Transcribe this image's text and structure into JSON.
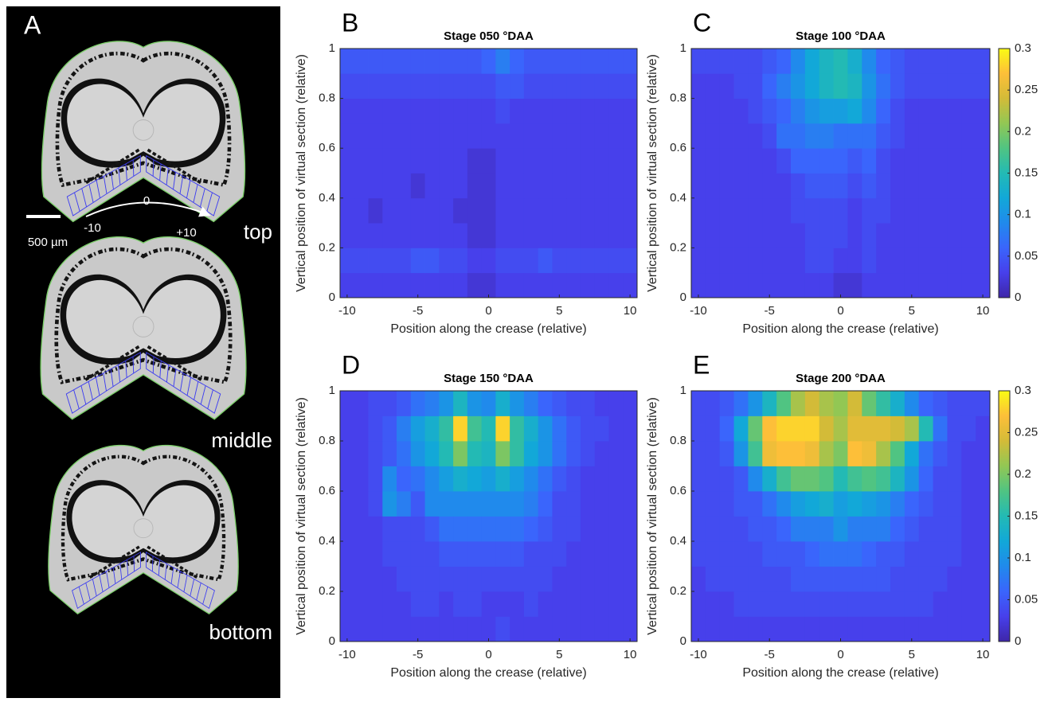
{
  "image_panel": {
    "label": "A",
    "scale_bar": "500 µm",
    "arrow_labels": [
      "-10",
      "0",
      "+10"
    ],
    "section_labels": [
      "top",
      "middle",
      "bottom"
    ]
  },
  "chart_data": [
    {
      "type": "heatmap",
      "label": "B",
      "title": "Stage 050 °DAA",
      "x_label": "Position along the crease (relative)",
      "y_label": "Vertical position of virtual section (relative)",
      "x": [
        -10,
        -9,
        -8,
        -7,
        -6,
        -5,
        -4,
        -3,
        -2,
        -1,
        0,
        1,
        2,
        3,
        4,
        5,
        6,
        7,
        8,
        9,
        10
      ],
      "y": [
        0.05,
        0.15,
        0.25,
        0.35,
        0.45,
        0.55,
        0.65,
        0.75,
        0.85,
        0.95
      ],
      "values": [
        [
          0.03,
          0.03,
          0.03,
          0.03,
          0.03,
          0.03,
          0.03,
          0.03,
          0.03,
          0.02,
          0.02,
          0.03,
          0.03,
          0.03,
          0.03,
          0.03,
          0.03,
          0.03,
          0.03,
          0.03,
          0.03
        ],
        [
          0.04,
          0.04,
          0.04,
          0.04,
          0.04,
          0.05,
          0.05,
          0.04,
          0.04,
          0.03,
          0.03,
          0.04,
          0.04,
          0.04,
          0.05,
          0.04,
          0.04,
          0.04,
          0.04,
          0.04,
          0.04
        ],
        [
          0.03,
          0.03,
          0.03,
          0.03,
          0.03,
          0.03,
          0.03,
          0.03,
          0.03,
          0.02,
          0.02,
          0.03,
          0.03,
          0.03,
          0.03,
          0.03,
          0.03,
          0.03,
          0.03,
          0.03,
          0.03
        ],
        [
          0.03,
          0.03,
          0.02,
          0.03,
          0.03,
          0.03,
          0.03,
          0.03,
          0.02,
          0.02,
          0.02,
          0.03,
          0.03,
          0.03,
          0.03,
          0.03,
          0.03,
          0.03,
          0.03,
          0.03,
          0.03
        ],
        [
          0.03,
          0.03,
          0.03,
          0.03,
          0.03,
          0.02,
          0.03,
          0.03,
          0.03,
          0.02,
          0.02,
          0.03,
          0.03,
          0.03,
          0.03,
          0.03,
          0.03,
          0.03,
          0.03,
          0.03,
          0.03
        ],
        [
          0.03,
          0.03,
          0.03,
          0.03,
          0.03,
          0.03,
          0.03,
          0.03,
          0.03,
          0.02,
          0.02,
          0.03,
          0.03,
          0.03,
          0.03,
          0.03,
          0.03,
          0.03,
          0.03,
          0.03,
          0.03
        ],
        [
          0.03,
          0.03,
          0.03,
          0.03,
          0.03,
          0.03,
          0.03,
          0.03,
          0.03,
          0.03,
          0.03,
          0.03,
          0.03,
          0.03,
          0.03,
          0.03,
          0.03,
          0.03,
          0.03,
          0.03,
          0.03
        ],
        [
          0.03,
          0.03,
          0.03,
          0.03,
          0.03,
          0.03,
          0.03,
          0.03,
          0.03,
          0.03,
          0.03,
          0.04,
          0.03,
          0.03,
          0.03,
          0.03,
          0.03,
          0.03,
          0.03,
          0.03,
          0.03
        ],
        [
          0.04,
          0.04,
          0.04,
          0.04,
          0.04,
          0.04,
          0.04,
          0.04,
          0.04,
          0.04,
          0.04,
          0.05,
          0.05,
          0.04,
          0.04,
          0.04,
          0.04,
          0.04,
          0.04,
          0.04,
          0.04
        ],
        [
          0.05,
          0.05,
          0.05,
          0.05,
          0.05,
          0.05,
          0.05,
          0.05,
          0.05,
          0.05,
          0.06,
          0.08,
          0.06,
          0.05,
          0.05,
          0.05,
          0.05,
          0.05,
          0.05,
          0.05,
          0.05
        ]
      ],
      "xlim": [
        -10.5,
        10.5
      ],
      "ylim": [
        0,
        1
      ],
      "xticks": [
        -10,
        -5,
        0,
        5,
        10
      ],
      "yticks": [
        0,
        0.2,
        0.4,
        0.6,
        0.8,
        1
      ],
      "clim": [
        0,
        0.3
      ],
      "colormap": "parula",
      "colorbar": false
    },
    {
      "type": "heatmap",
      "label": "C",
      "title": "Stage 100 °DAA",
      "x_label": "Position along the crease (relative)",
      "y_label": "Vertical position of virtual section (relative)",
      "x": [
        -10,
        -9,
        -8,
        -7,
        -6,
        -5,
        -4,
        -3,
        -2,
        -1,
        0,
        1,
        2,
        3,
        4,
        5,
        6,
        7,
        8,
        9,
        10
      ],
      "y": [
        0.05,
        0.15,
        0.25,
        0.35,
        0.45,
        0.55,
        0.65,
        0.75,
        0.85,
        0.95
      ],
      "values": [
        [
          0.03,
          0.03,
          0.03,
          0.03,
          0.03,
          0.03,
          0.03,
          0.03,
          0.03,
          0.03,
          0.02,
          0.02,
          0.03,
          0.03,
          0.03,
          0.03,
          0.03,
          0.03,
          0.03,
          0.03,
          0.03
        ],
        [
          0.03,
          0.03,
          0.03,
          0.03,
          0.03,
          0.03,
          0.03,
          0.03,
          0.04,
          0.04,
          0.03,
          0.03,
          0.04,
          0.03,
          0.03,
          0.03,
          0.03,
          0.03,
          0.03,
          0.03,
          0.03
        ],
        [
          0.03,
          0.03,
          0.03,
          0.03,
          0.03,
          0.03,
          0.03,
          0.03,
          0.04,
          0.04,
          0.04,
          0.03,
          0.04,
          0.03,
          0.03,
          0.03,
          0.03,
          0.03,
          0.03,
          0.03,
          0.03
        ],
        [
          0.03,
          0.03,
          0.03,
          0.03,
          0.03,
          0.03,
          0.03,
          0.04,
          0.04,
          0.04,
          0.04,
          0.03,
          0.04,
          0.04,
          0.03,
          0.03,
          0.03,
          0.03,
          0.03,
          0.03,
          0.03
        ],
        [
          0.03,
          0.03,
          0.03,
          0.03,
          0.03,
          0.03,
          0.03,
          0.04,
          0.05,
          0.05,
          0.05,
          0.04,
          0.05,
          0.04,
          0.03,
          0.03,
          0.03,
          0.03,
          0.03,
          0.03,
          0.03
        ],
        [
          0.03,
          0.03,
          0.03,
          0.03,
          0.03,
          0.03,
          0.04,
          0.06,
          0.06,
          0.06,
          0.06,
          0.05,
          0.06,
          0.04,
          0.03,
          0.03,
          0.03,
          0.03,
          0.03,
          0.03,
          0.03
        ],
        [
          0.03,
          0.03,
          0.03,
          0.03,
          0.03,
          0.04,
          0.07,
          0.07,
          0.08,
          0.08,
          0.07,
          0.07,
          0.07,
          0.05,
          0.04,
          0.03,
          0.03,
          0.03,
          0.03,
          0.03,
          0.03
        ],
        [
          0.03,
          0.03,
          0.03,
          0.03,
          0.04,
          0.05,
          0.06,
          0.08,
          0.1,
          0.11,
          0.11,
          0.12,
          0.09,
          0.06,
          0.04,
          0.03,
          0.03,
          0.03,
          0.03,
          0.03,
          0.03
        ],
        [
          0.03,
          0.03,
          0.03,
          0.04,
          0.04,
          0.06,
          0.08,
          0.1,
          0.12,
          0.14,
          0.15,
          0.14,
          0.1,
          0.07,
          0.05,
          0.04,
          0.04,
          0.04,
          0.04,
          0.04,
          0.04
        ],
        [
          0.04,
          0.04,
          0.04,
          0.04,
          0.04,
          0.05,
          0.06,
          0.09,
          0.12,
          0.14,
          0.15,
          0.13,
          0.09,
          0.06,
          0.05,
          0.04,
          0.04,
          0.04,
          0.04,
          0.04,
          0.04
        ]
      ],
      "xlim": [
        -10.5,
        10.5
      ],
      "ylim": [
        0,
        1
      ],
      "xticks": [
        -10,
        -5,
        0,
        5,
        10
      ],
      "yticks": [
        0,
        0.2,
        0.4,
        0.6,
        0.8,
        1
      ],
      "clim": [
        0,
        0.3
      ],
      "colormap": "parula",
      "colorbar": true,
      "colorbar_ticks": [
        0,
        0.05,
        0.1,
        0.15,
        0.2,
        0.25,
        0.3
      ]
    },
    {
      "type": "heatmap",
      "label": "D",
      "title": "Stage 150 °DAA",
      "x_label": "Position along the crease (relative)",
      "y_label": "Vertical position of virtual section (relative)",
      "x": [
        -10,
        -9,
        -8,
        -7,
        -6,
        -5,
        -4,
        -3,
        -2,
        -1,
        0,
        1,
        2,
        3,
        4,
        5,
        6,
        7,
        8,
        9,
        10
      ],
      "y": [
        0.05,
        0.15,
        0.25,
        0.35,
        0.45,
        0.55,
        0.65,
        0.75,
        0.85,
        0.95
      ],
      "values": [
        [
          0.03,
          0.03,
          0.03,
          0.03,
          0.03,
          0.03,
          0.03,
          0.03,
          0.03,
          0.03,
          0.03,
          0.04,
          0.03,
          0.03,
          0.03,
          0.03,
          0.03,
          0.03,
          0.03,
          0.03,
          0.03
        ],
        [
          0.03,
          0.03,
          0.03,
          0.03,
          0.03,
          0.04,
          0.04,
          0.03,
          0.04,
          0.04,
          0.03,
          0.03,
          0.03,
          0.04,
          0.03,
          0.03,
          0.03,
          0.03,
          0.03,
          0.03,
          0.03
        ],
        [
          0.03,
          0.03,
          0.03,
          0.03,
          0.04,
          0.04,
          0.04,
          0.04,
          0.04,
          0.04,
          0.04,
          0.04,
          0.04,
          0.04,
          0.04,
          0.03,
          0.03,
          0.03,
          0.03,
          0.03,
          0.03
        ],
        [
          0.03,
          0.03,
          0.03,
          0.04,
          0.04,
          0.04,
          0.04,
          0.05,
          0.05,
          0.05,
          0.05,
          0.05,
          0.05,
          0.04,
          0.04,
          0.04,
          0.03,
          0.03,
          0.03,
          0.03,
          0.03
        ],
        [
          0.03,
          0.03,
          0.03,
          0.04,
          0.04,
          0.04,
          0.05,
          0.07,
          0.07,
          0.07,
          0.07,
          0.07,
          0.07,
          0.06,
          0.05,
          0.04,
          0.04,
          0.03,
          0.03,
          0.03,
          0.03
        ],
        [
          0.03,
          0.03,
          0.04,
          0.1,
          0.08,
          0.05,
          0.09,
          0.09,
          0.09,
          0.09,
          0.09,
          0.09,
          0.09,
          0.08,
          0.06,
          0.04,
          0.04,
          0.03,
          0.03,
          0.03,
          0.03
        ],
        [
          0.03,
          0.03,
          0.04,
          0.09,
          0.06,
          0.07,
          0.09,
          0.11,
          0.13,
          0.12,
          0.11,
          0.13,
          0.11,
          0.09,
          0.07,
          0.05,
          0.04,
          0.03,
          0.03,
          0.03,
          0.03
        ],
        [
          0.03,
          0.03,
          0.04,
          0.05,
          0.07,
          0.1,
          0.12,
          0.15,
          0.2,
          0.15,
          0.14,
          0.2,
          0.16,
          0.12,
          0.1,
          0.07,
          0.05,
          0.04,
          0.03,
          0.03,
          0.03
        ],
        [
          0.03,
          0.03,
          0.04,
          0.05,
          0.08,
          0.11,
          0.13,
          0.16,
          0.28,
          0.17,
          0.15,
          0.28,
          0.16,
          0.13,
          0.1,
          0.07,
          0.05,
          0.04,
          0.04,
          0.03,
          0.03
        ],
        [
          0.03,
          0.03,
          0.04,
          0.04,
          0.05,
          0.07,
          0.08,
          0.1,
          0.14,
          0.1,
          0.09,
          0.13,
          0.1,
          0.08,
          0.06,
          0.05,
          0.04,
          0.04,
          0.03,
          0.03,
          0.03
        ]
      ],
      "xlim": [
        -10.5,
        10.5
      ],
      "ylim": [
        0,
        1
      ],
      "xticks": [
        -10,
        -5,
        0,
        5,
        10
      ],
      "yticks": [
        0,
        0.2,
        0.4,
        0.6,
        0.8,
        1
      ],
      "clim": [
        0,
        0.3
      ],
      "colormap": "parula",
      "colorbar": false
    },
    {
      "type": "heatmap",
      "label": "E",
      "title": "Stage 200 °DAA",
      "x_label": "Position along the crease (relative)",
      "y_label": "Vertical position of virtual section (relative)",
      "x": [
        -10,
        -9,
        -8,
        -7,
        -6,
        -5,
        -4,
        -3,
        -2,
        -1,
        0,
        1,
        2,
        3,
        4,
        5,
        6,
        7,
        8,
        9,
        10
      ],
      "y": [
        0.05,
        0.15,
        0.25,
        0.35,
        0.45,
        0.55,
        0.65,
        0.75,
        0.85,
        0.95
      ],
      "values": [
        [
          0.03,
          0.03,
          0.03,
          0.03,
          0.03,
          0.03,
          0.03,
          0.03,
          0.03,
          0.03,
          0.03,
          0.03,
          0.03,
          0.03,
          0.03,
          0.03,
          0.03,
          0.03,
          0.03,
          0.03,
          0.03
        ],
        [
          0.03,
          0.03,
          0.03,
          0.04,
          0.04,
          0.04,
          0.04,
          0.04,
          0.04,
          0.04,
          0.04,
          0.04,
          0.04,
          0.04,
          0.04,
          0.04,
          0.04,
          0.03,
          0.03,
          0.03,
          0.03
        ],
        [
          0.03,
          0.04,
          0.04,
          0.04,
          0.04,
          0.04,
          0.04,
          0.05,
          0.05,
          0.05,
          0.05,
          0.05,
          0.05,
          0.05,
          0.04,
          0.04,
          0.04,
          0.04,
          0.03,
          0.03,
          0.03
        ],
        [
          0.04,
          0.04,
          0.04,
          0.04,
          0.04,
          0.05,
          0.05,
          0.05,
          0.06,
          0.07,
          0.07,
          0.07,
          0.06,
          0.05,
          0.05,
          0.04,
          0.04,
          0.04,
          0.04,
          0.03,
          0.03
        ],
        [
          0.04,
          0.04,
          0.04,
          0.04,
          0.05,
          0.05,
          0.06,
          0.08,
          0.08,
          0.08,
          0.1,
          0.08,
          0.08,
          0.08,
          0.06,
          0.05,
          0.04,
          0.04,
          0.04,
          0.03,
          0.03
        ],
        [
          0.04,
          0.04,
          0.04,
          0.05,
          0.05,
          0.07,
          0.09,
          0.11,
          0.12,
          0.13,
          0.11,
          0.12,
          0.11,
          0.1,
          0.08,
          0.06,
          0.05,
          0.04,
          0.04,
          0.03,
          0.03
        ],
        [
          0.04,
          0.04,
          0.04,
          0.05,
          0.09,
          0.13,
          0.17,
          0.19,
          0.19,
          0.18,
          0.15,
          0.17,
          0.18,
          0.17,
          0.14,
          0.1,
          0.06,
          0.04,
          0.04,
          0.03,
          0.03
        ],
        [
          0.04,
          0.04,
          0.05,
          0.1,
          0.17,
          0.26,
          0.27,
          0.27,
          0.26,
          0.22,
          0.2,
          0.27,
          0.26,
          0.22,
          0.18,
          0.12,
          0.07,
          0.05,
          0.04,
          0.03,
          0.03
        ],
        [
          0.04,
          0.04,
          0.06,
          0.12,
          0.19,
          0.27,
          0.28,
          0.28,
          0.28,
          0.24,
          0.22,
          0.25,
          0.25,
          0.25,
          0.24,
          0.22,
          0.15,
          0.07,
          0.04,
          0.04,
          0.03
        ],
        [
          0.04,
          0.04,
          0.05,
          0.07,
          0.1,
          0.14,
          0.18,
          0.22,
          0.24,
          0.22,
          0.21,
          0.24,
          0.19,
          0.16,
          0.13,
          0.09,
          0.06,
          0.05,
          0.04,
          0.04,
          0.04
        ]
      ],
      "xlim": [
        -10.5,
        10.5
      ],
      "ylim": [
        0,
        1
      ],
      "xticks": [
        -10,
        -5,
        0,
        5,
        10
      ],
      "yticks": [
        0,
        0.2,
        0.4,
        0.6,
        0.8,
        1
      ],
      "clim": [
        0,
        0.3
      ],
      "colormap": "parula",
      "colorbar": true,
      "colorbar_ticks": [
        0,
        0.05,
        0.1,
        0.15,
        0.2,
        0.25,
        0.3
      ]
    }
  ]
}
